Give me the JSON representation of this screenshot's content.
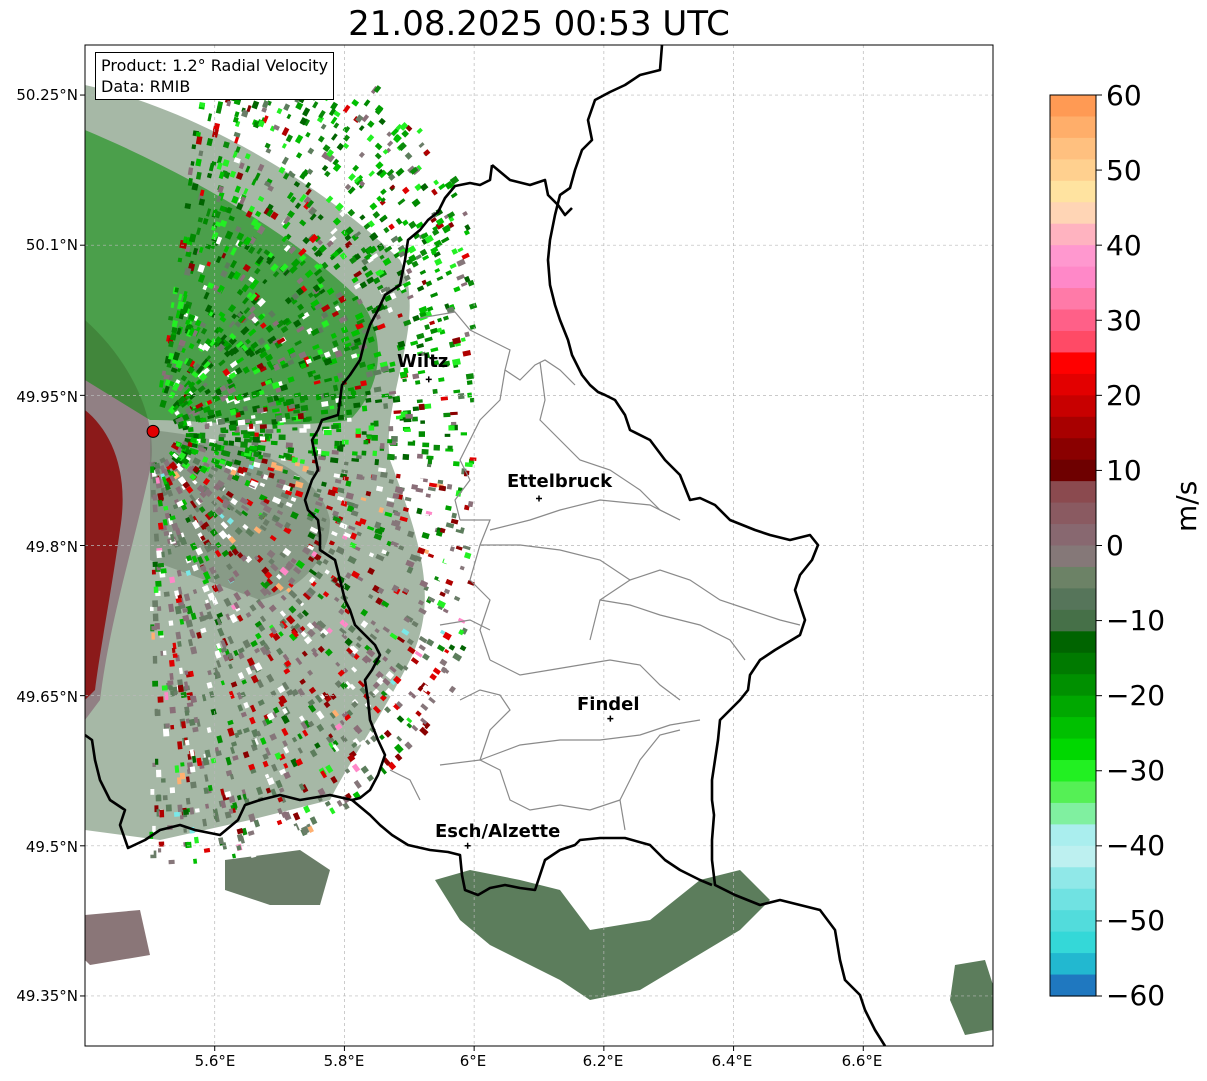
{
  "title": "21.08.2025 00:53 UTC",
  "info": {
    "product": "Product: 1.2° Radial Velocity",
    "data": "Data: RMIB"
  },
  "axes": {
    "lat_labels": [
      "50.25°N",
      "50.1°N",
      "49.95°N",
      "49.8°N",
      "49.65°N",
      "49.5°N",
      "49.35°N"
    ],
    "lon_labels": [
      "5.6°E",
      "5.8°E",
      "6°E",
      "6.2°E",
      "6.4°E",
      "6.6°E"
    ],
    "lat_values": [
      50.25,
      50.1,
      49.95,
      49.8,
      49.65,
      49.5,
      49.35
    ],
    "lon_values": [
      5.6,
      5.8,
      6.0,
      6.2,
      6.4,
      6.6
    ],
    "lon_range": [
      5.4,
      6.8
    ],
    "lat_range": [
      49.3,
      50.3
    ],
    "gridlines": "dashed, light grey"
  },
  "colorbar": {
    "label": "m/s",
    "ticks": [
      "60",
      "50",
      "40",
      "30",
      "20",
      "10",
      "0",
      "−10",
      "−20",
      "−30",
      "−40",
      "−50",
      "−60"
    ],
    "range": [
      -60,
      60
    ],
    "colors": [
      "#ff9a54",
      "#ffae6a",
      "#ffc07f",
      "#ffd08f",
      "#ffe3a0",
      "#ffd5b5",
      "#ffb3c0",
      "#ff98cf",
      "#ff88c8",
      "#ff7aa8",
      "#ff6088",
      "#ff4a66",
      "#ff0000",
      "#e30000",
      "#c80000",
      "#a80000",
      "#8a0000",
      "#6e0000",
      "#8b4a4f",
      "#8a5a61",
      "#886870",
      "#857878",
      "#6c8266",
      "#56755a",
      "#467048",
      "#006400",
      "#007a00",
      "#009000",
      "#00a800",
      "#00c000",
      "#00d800",
      "#22f022",
      "#55f055",
      "#80f0a0",
      "#aaeeee",
      "#bdf0f0",
      "#90e8e8",
      "#70e2e2",
      "#52dcdc",
      "#34d8d8",
      "#22b8d0",
      "#1f78c0"
    ]
  },
  "cities": [
    {
      "name": "Wiltz",
      "lon": 5.93,
      "lat": 49.966
    },
    {
      "name": "Ettelbruck",
      "lon": 6.1,
      "lat": 49.847
    },
    {
      "name": "Findel",
      "lon": 6.21,
      "lat": 49.627
    },
    {
      "name": "Esch/Alzette",
      "lon": 5.99,
      "lat": 49.5
    }
  ],
  "radar_site": {
    "lon": 5.505,
    "lat": 49.914,
    "color": "#e00000"
  }
}
